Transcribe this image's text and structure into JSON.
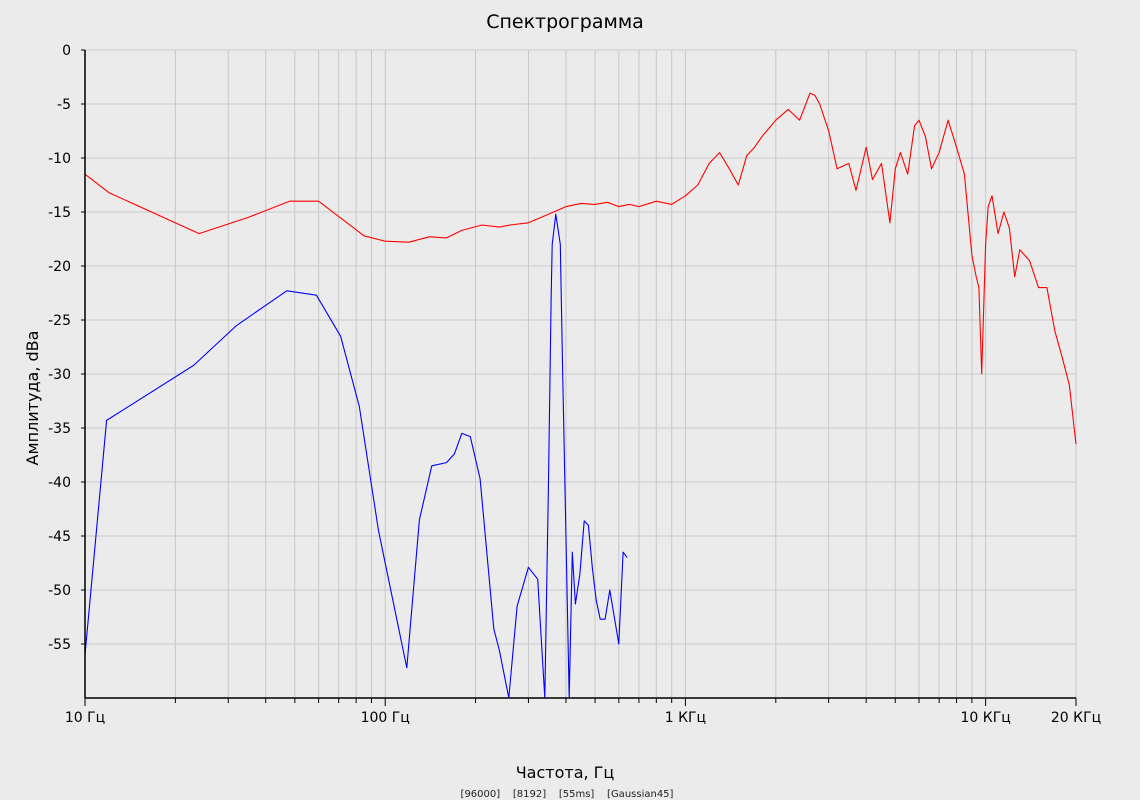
{
  "chart_data": {
    "type": "line",
    "title": "Спектрограмма",
    "xlabel": "Частота, Гц",
    "ylabel": "Амплитуда, dBa",
    "footer": "[96000]    [8192]    [55ms]    [Gaussian45]",
    "x_scale": "log",
    "xlim": [
      10,
      20000
    ],
    "ylim": [
      -60,
      0
    ],
    "grid": true,
    "legend": "none",
    "x_tick_labels": [
      {
        "value": 10,
        "label": "10 Гц"
      },
      {
        "value": 100,
        "label": "100 Гц"
      },
      {
        "value": 1000,
        "label": "1 КГц"
      },
      {
        "value": 10000,
        "label": "10 КГц"
      },
      {
        "value": 20000,
        "label": "20 КГц"
      }
    ],
    "y_ticks": [
      0,
      -5,
      -10,
      -15,
      -20,
      -25,
      -30,
      -35,
      -40,
      -45,
      -50,
      -55
    ],
    "series": [
      {
        "color": "#ff0000",
        "x": [
          10,
          12,
          24,
          35,
          48,
          60,
          85,
          100,
          120,
          140,
          160,
          180,
          210,
          240,
          260,
          300,
          350,
          400,
          450,
          500,
          550,
          600,
          650,
          700,
          800,
          900,
          1000,
          1100,
          1200,
          1300,
          1400,
          1500,
          1600,
          1700,
          1800,
          2000,
          2200,
          2400,
          2600,
          2700,
          2800,
          3000,
          3200,
          3500,
          3700,
          4000,
          4200,
          4500,
          4800,
          5000,
          5200,
          5500,
          5800,
          6000,
          6300,
          6600,
          7000,
          7500,
          8000,
          8500,
          9000,
          9300,
          9500,
          9700,
          10000,
          10200,
          10500,
          11000,
          11500,
          12000,
          12500,
          13000,
          14000,
          15000,
          16000,
          17000,
          18000,
          19000,
          20000
        ],
        "y": [
          -11.5,
          -13.2,
          -17.0,
          -15.5,
          -14.0,
          -14.0,
          -17.2,
          -17.7,
          -17.8,
          -17.3,
          -17.4,
          -16.7,
          -16.2,
          -16.4,
          -16.2,
          -16.0,
          -15.2,
          -14.5,
          -14.2,
          -14.3,
          -14.1,
          -14.5,
          -14.3,
          -14.5,
          -14.0,
          -14.3,
          -13.5,
          -12.5,
          -10.5,
          -9.5,
          -11.0,
          -12.5,
          -9.8,
          -9.0,
          -8.0,
          -6.5,
          -5.5,
          -6.5,
          -4.0,
          -4.2,
          -5.0,
          -7.5,
          -11.0,
          -10.5,
          -13.0,
          -9.0,
          -12.0,
          -10.5,
          -16.0,
          -11.0,
          -9.5,
          -11.5,
          -7.0,
          -6.5,
          -8.0,
          -11.0,
          -9.5,
          -6.5,
          -9.0,
          -11.5,
          -19.0,
          -21.0,
          -22.0,
          -30.0,
          -18.0,
          -14.5,
          -13.5,
          -17.0,
          -15.0,
          -16.5,
          -21.0,
          -18.5,
          -19.5,
          -22.0,
          -22.0,
          -26.0,
          -28.5,
          -31.0,
          -36.5
        ]
      },
      {
        "color": "#0000ff",
        "x": [
          10,
          11.8,
          23,
          32,
          47,
          59,
          71,
          82,
          95,
          118,
          130,
          143,
          160,
          170,
          180,
          192,
          207,
          230,
          240,
          258,
          275,
          300,
          322,
          340,
          350,
          357,
          360,
          370,
          383,
          390,
          410,
          420,
          430,
          445,
          460,
          475,
          490,
          505,
          520,
          540,
          560,
          600,
          620,
          640
        ],
        "y": [
          -56.0,
          -34.3,
          -29.2,
          -25.5,
          -22.3,
          -22.7,
          -26.5,
          -33.0,
          -44.5,
          -57.2,
          -43.5,
          -38.5,
          -38.2,
          -37.4,
          -35.5,
          -35.8,
          -39.7,
          -53.6,
          -55.6,
          -60.0,
          -51.5,
          -47.9,
          -49.0,
          -60.0,
          -40.0,
          -23.2,
          -18.0,
          -15.2,
          -18.0,
          -30.0,
          -60.0,
          -46.5,
          -51.3,
          -48.5,
          -43.6,
          -44.0,
          -48.0,
          -51.0,
          -52.7,
          -52.7,
          -50.0,
          -55.0,
          -46.5,
          -47.0
        ]
      }
    ]
  }
}
